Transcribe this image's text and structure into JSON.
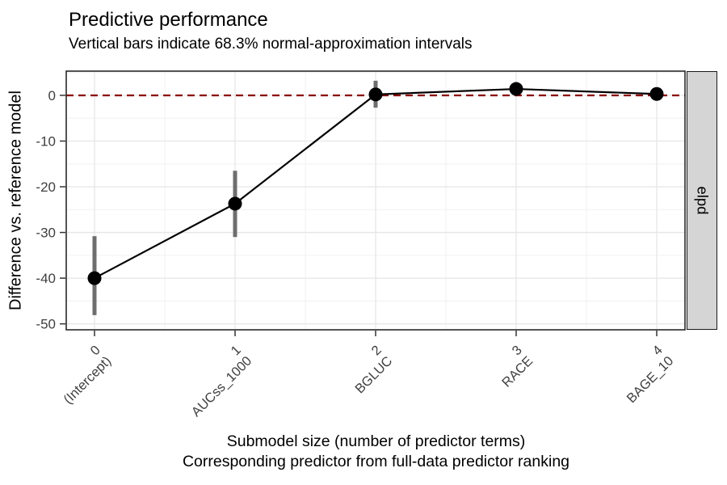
{
  "chart_data": {
    "type": "line",
    "title": "Predictive performance",
    "subtitle": "Vertical bars indicate 68.3% normal-approximation intervals",
    "ylabel": "Difference vs. reference model",
    "xlabel_lines": [
      "Submodel size (number of predictor terms)",
      "Corresponding predictor from full-data predictor ranking"
    ],
    "facet_label": "elpd",
    "x": [
      0,
      1,
      2,
      3,
      4
    ],
    "x_tick_top": [
      "0",
      "1",
      "2",
      "3",
      "4"
    ],
    "x_tick_bottom": [
      "(Intercept)",
      "AUCss_1000",
      "BGLUC",
      "RACE",
      "BAGE_10"
    ],
    "series": [
      {
        "name": "elpd difference vs. reference model",
        "estimates": [
          -40.0,
          -23.7,
          0.2,
          1.4,
          0.3
        ],
        "lower": [
          -48.1,
          -31.0,
          -2.7,
          0.2,
          -0.8
        ],
        "upper": [
          -30.8,
          -16.5,
          3.2,
          2.6,
          1.5
        ]
      }
    ],
    "reference_line_y": 0,
    "interval_level": "68.3%",
    "y_ticks": [
      0,
      -10,
      -20,
      -30,
      -40,
      -50
    ],
    "y_minor_ticks": [
      5,
      -5,
      -15,
      -25,
      -35,
      -45
    ],
    "ylim": [
      -51.3,
      5.3
    ],
    "grid": true,
    "legend": "none"
  },
  "colors": {
    "background": "#FFFFFF",
    "reference_line": "#8B0000",
    "interval_bar": "#6E6E6E",
    "line": "#000000",
    "point": "#000000",
    "grid_major": "#E6E6E6",
    "grid_minor": "#F0F0F0",
    "panel_border": "#1A1A1A",
    "tick_mark": "#333333",
    "axis_text": "#404040",
    "strip_background": "#D5D5D5",
    "strip_border": "#1A1A1A"
  }
}
